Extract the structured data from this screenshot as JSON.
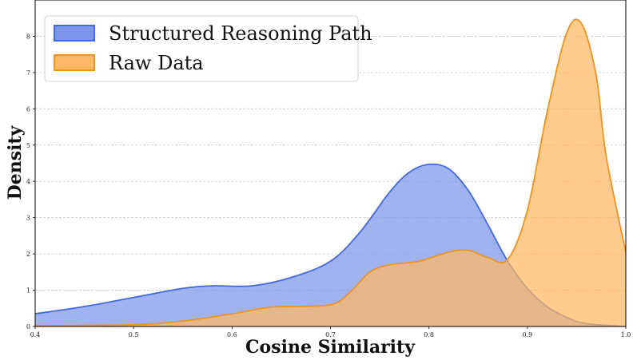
{
  "chart_data": {
    "type": "area",
    "title": "",
    "xlabel": "Cosine Similarity",
    "ylabel": "Density",
    "xlim": [
      0.4,
      1.0
    ],
    "ylim": [
      0,
      9
    ],
    "xticks": [
      "0.4",
      "0.5",
      "0.6",
      "0.7",
      "0.8",
      "0.9",
      "1.0"
    ],
    "yticks": [
      "0",
      "1",
      "2",
      "3",
      "4",
      "5",
      "6",
      "7",
      "8"
    ],
    "grid": "horizontal-dashed",
    "legend_position": "top-left",
    "series": [
      {
        "name": "Structured Reasoning Path",
        "color": "#4169E1",
        "fill": "#7b96ea",
        "x": [
          0.4,
          0.45,
          0.5,
          0.55,
          0.58,
          0.62,
          0.66,
          0.7,
          0.73,
          0.76,
          0.78,
          0.8,
          0.82,
          0.84,
          0.86,
          0.88,
          0.9,
          0.92,
          0.94,
          0.96,
          1.0
        ],
        "values": [
          0.35,
          0.55,
          0.8,
          1.05,
          1.12,
          1.12,
          1.35,
          1.8,
          2.6,
          3.7,
          4.25,
          4.47,
          4.35,
          3.75,
          2.8,
          1.8,
          1.05,
          0.55,
          0.25,
          0.08,
          0.0
        ]
      },
      {
        "name": "Raw Data",
        "color": "#f0921e",
        "fill": "#ffb863",
        "x": [
          0.4,
          0.5,
          0.55,
          0.6,
          0.63,
          0.65,
          0.7,
          0.72,
          0.74,
          0.76,
          0.79,
          0.82,
          0.84,
          0.86,
          0.88,
          0.9,
          0.92,
          0.94,
          0.955,
          0.97,
          0.98,
          1.0
        ],
        "values": [
          0.02,
          0.05,
          0.15,
          0.35,
          0.5,
          0.55,
          0.6,
          0.95,
          1.5,
          1.7,
          1.8,
          2.05,
          2.1,
          1.9,
          1.85,
          3.2,
          5.9,
          8.1,
          8.35,
          6.9,
          4.7,
          2.05
        ]
      }
    ]
  }
}
